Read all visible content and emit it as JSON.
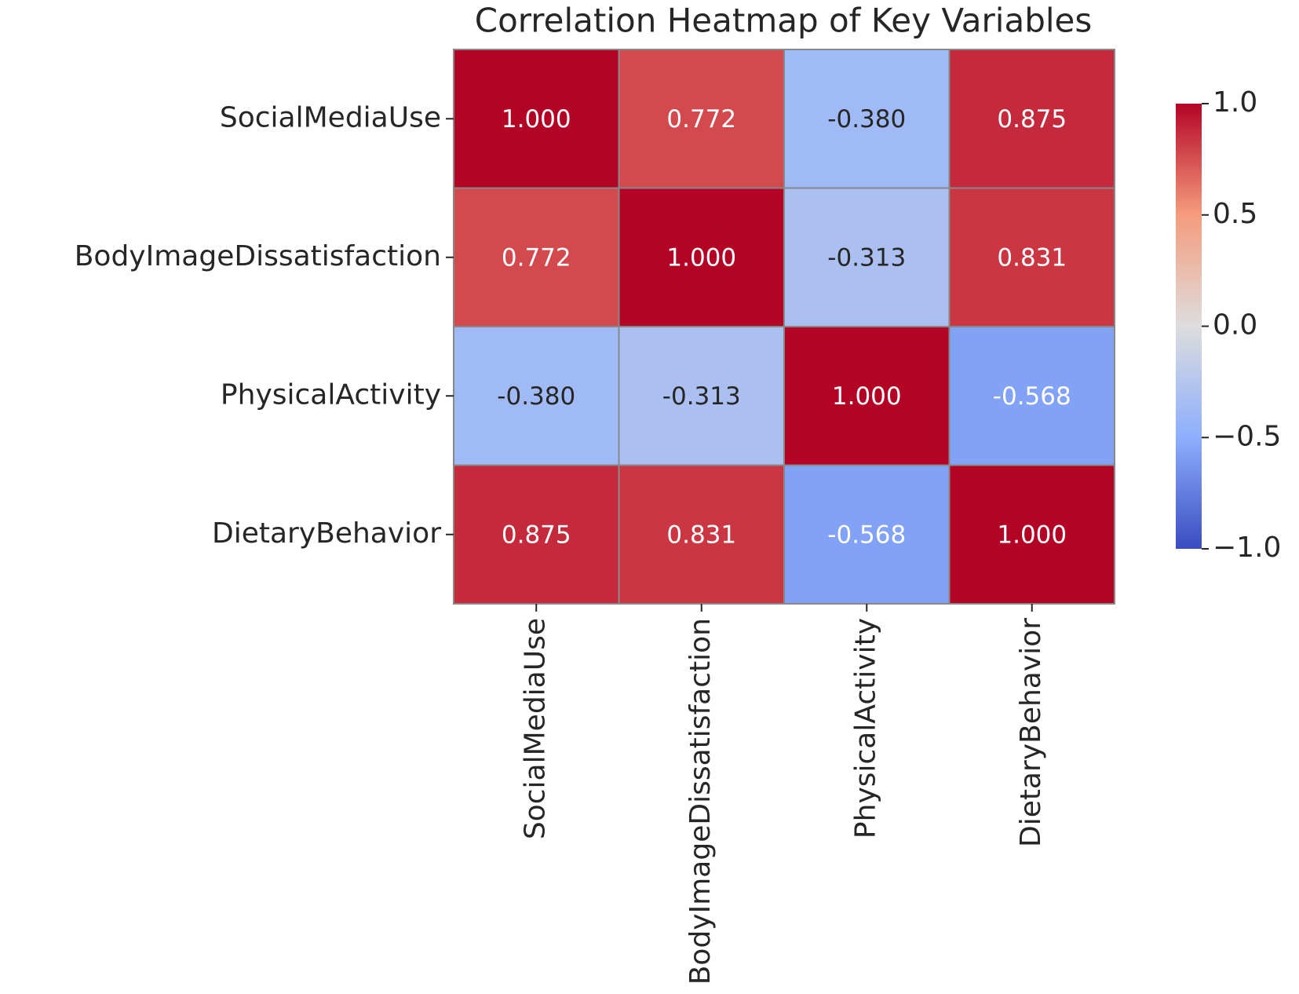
{
  "chart_data": {
    "type": "heatmap",
    "title": "Correlation Heatmap of Key Variables",
    "x_categories": [
      "SocialMediaUse",
      "BodyImageDissatisfaction",
      "PhysicalActivity",
      "DietaryBehavior"
    ],
    "y_categories": [
      "SocialMediaUse",
      "BodyImageDissatisfaction",
      "PhysicalActivity",
      "DietaryBehavior"
    ],
    "values": [
      [
        1,
        0.772,
        -0.38,
        0.875
      ],
      [
        0.772,
        1,
        -0.313,
        0.831
      ],
      [
        -0.38,
        -0.313,
        1,
        -0.568
      ],
      [
        0.875,
        0.831,
        -0.568,
        1
      ]
    ],
    "value_labels": [
      [
        "1.000",
        "0.772",
        "-0.380",
        "0.875"
      ],
      [
        "0.772",
        "1.000",
        "-0.313",
        "0.831"
      ],
      [
        "-0.380",
        "-0.313",
        "1.000",
        "-0.568"
      ],
      [
        "0.875",
        "0.831",
        "-0.568",
        "1.000"
      ]
    ],
    "colormap": "coolwarm",
    "clim": [
      -1,
      1
    ],
    "cticks": [
      {
        "value": 1,
        "label": "1.0"
      },
      0.5,
      {
        "value": 0,
        "label": "0.0"
      },
      {
        "value": -0.5,
        "label": "−0.5"
      },
      {
        "value": -1,
        "label": "−1.0"
      }
    ]
  }
}
